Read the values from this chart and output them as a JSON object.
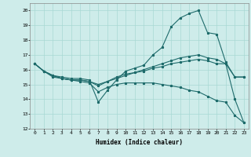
{
  "xlabel": "Humidex (Indice chaleur)",
  "ylabel": "",
  "bg_color": "#ceecea",
  "line_color": "#1e6b6b",
  "grid_color": "#a8d8d4",
  "xlim": [
    -0.5,
    23.5
  ],
  "ylim": [
    12,
    20.5
  ],
  "yticks": [
    12,
    13,
    14,
    15,
    16,
    17,
    18,
    19,
    20
  ],
  "xticks": [
    0,
    1,
    2,
    3,
    4,
    5,
    6,
    7,
    8,
    9,
    10,
    11,
    12,
    13,
    14,
    15,
    16,
    17,
    18,
    19,
    20,
    21,
    22,
    23
  ],
  "line1_x": [
    0,
    1,
    2,
    3,
    4,
    5,
    6,
    7,
    8,
    9,
    10,
    11,
    12,
    13,
    14,
    15,
    16,
    17,
    18,
    19,
    20,
    21,
    22,
    23
  ],
  "line1_y": [
    16.4,
    15.9,
    15.6,
    15.5,
    15.4,
    15.4,
    15.3,
    13.8,
    14.6,
    15.3,
    15.9,
    16.1,
    16.3,
    17.0,
    17.5,
    18.9,
    19.5,
    19.8,
    20.0,
    18.5,
    18.4,
    16.5,
    15.5,
    15.5
  ],
  "line2_x": [
    0,
    1,
    2,
    3,
    4,
    5,
    6,
    7,
    8,
    9,
    10,
    11,
    12,
    13,
    14,
    15,
    16,
    17,
    18,
    19,
    20,
    21,
    22,
    23
  ],
  "line2_y": [
    16.4,
    15.9,
    15.6,
    15.4,
    15.3,
    15.3,
    15.2,
    14.9,
    15.2,
    15.5,
    15.7,
    15.8,
    15.9,
    16.1,
    16.2,
    16.4,
    16.5,
    16.6,
    16.7,
    16.6,
    16.4,
    16.4,
    15.5,
    15.5
  ],
  "line3_x": [
    0,
    1,
    2,
    3,
    4,
    5,
    6,
    7,
    8,
    9,
    10,
    11,
    12,
    13,
    14,
    15,
    16,
    17,
    18,
    19,
    20,
    21,
    22,
    23
  ],
  "line3_y": [
    16.4,
    15.9,
    15.6,
    15.4,
    15.3,
    15.2,
    15.1,
    14.5,
    14.8,
    15.0,
    15.1,
    15.1,
    15.1,
    15.1,
    15.0,
    14.9,
    14.8,
    14.6,
    14.5,
    14.2,
    13.9,
    13.8,
    12.9,
    12.4
  ],
  "line4_x": [
    0,
    1,
    2,
    3,
    4,
    5,
    6,
    7,
    8,
    9,
    10,
    11,
    12,
    13,
    14,
    15,
    16,
    17,
    18,
    19,
    20,
    21,
    22,
    23
  ],
  "line4_y": [
    16.4,
    15.9,
    15.5,
    15.4,
    15.3,
    15.3,
    15.2,
    15.0,
    15.2,
    15.4,
    15.6,
    15.8,
    16.0,
    16.2,
    16.4,
    16.6,
    16.8,
    16.9,
    17.0,
    16.8,
    16.7,
    16.4,
    14.0,
    12.4
  ],
  "lw": 0.8,
  "ms": 2.0,
  "xlabel_fontsize": 5.5,
  "tick_fontsize": 4.5
}
